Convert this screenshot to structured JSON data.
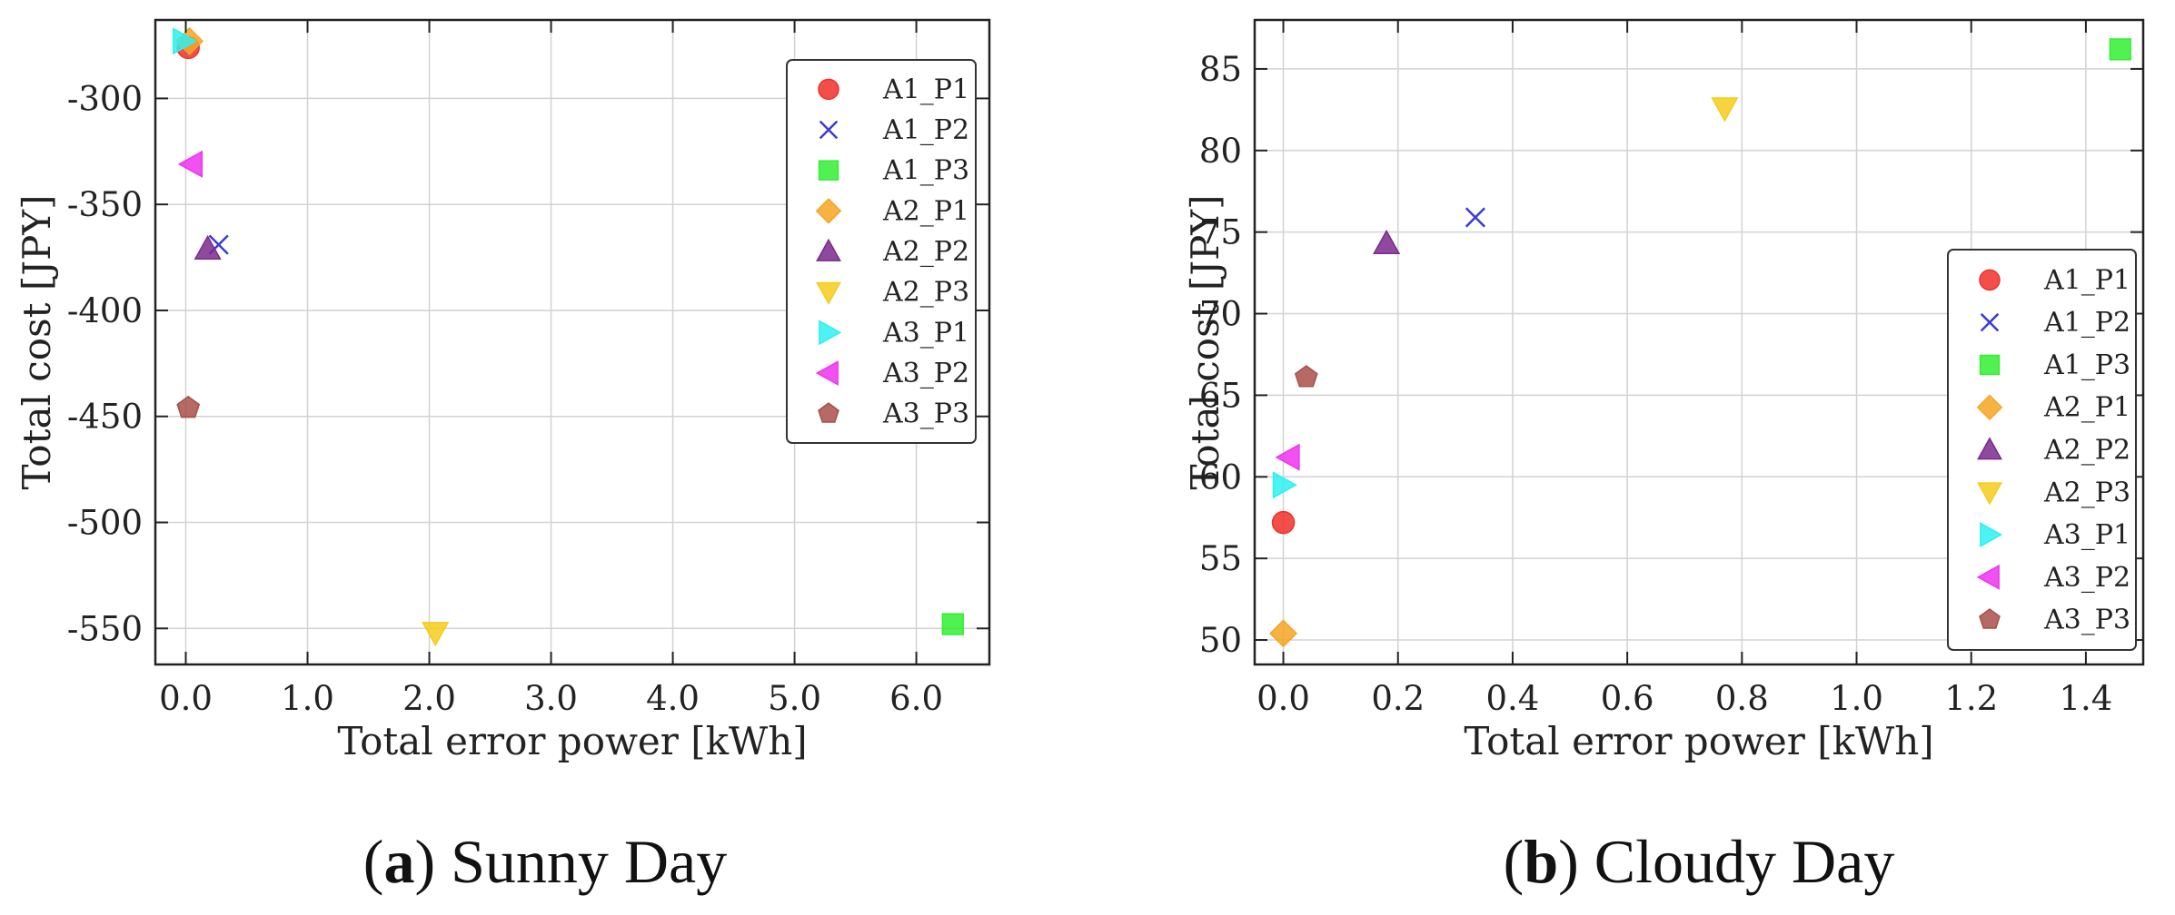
{
  "chart_data": [
    {
      "type": "scatter",
      "panel_label": "a",
      "caption": "Sunny Day",
      "xlabel": "Total error power [kWh]",
      "ylabel": "Total cost [JPY]",
      "xlim": [
        -0.25,
        6.6
      ],
      "ylim": [
        -567,
        -263
      ],
      "xticks": [
        0.0,
        1.0,
        2.0,
        3.0,
        4.0,
        5.0,
        6.0
      ],
      "xtick_labels": [
        "0.0",
        "1.0",
        "2.0",
        "3.0",
        "4.0",
        "5.0",
        "6.0"
      ],
      "yticks": [
        -300,
        -350,
        -400,
        -450,
        -500,
        -550
      ],
      "ytick_labels": [
        "-300",
        "-350",
        "-400",
        "-450",
        "-500",
        "-550"
      ],
      "grid": true,
      "legend_position": "top-right",
      "series": [
        {
          "name": "A1_P1",
          "marker": "circle",
          "color": "#f0302a",
          "x": [
            0.02
          ],
          "y": [
            -276
          ]
        },
        {
          "name": "A1_P2",
          "marker": "x",
          "color": "#3b3bd6",
          "x": [
            0.27
          ],
          "y": [
            -369
          ]
        },
        {
          "name": "A1_P3",
          "marker": "square",
          "color": "#33ee33",
          "x": [
            6.3
          ],
          "y": [
            -548
          ]
        },
        {
          "name": "A2_P1",
          "marker": "diamond",
          "color": "#f5a623",
          "x": [
            0.03
          ],
          "y": [
            -273
          ]
        },
        {
          "name": "A2_P2",
          "marker": "triangle-up",
          "color": "#7b2a8c",
          "x": [
            0.18
          ],
          "y": [
            -371
          ]
        },
        {
          "name": "A2_P3",
          "marker": "triangle-down",
          "color": "#f5cc1c",
          "x": [
            2.05
          ],
          "y": [
            -552
          ]
        },
        {
          "name": "A3_P1",
          "marker": "triangle-right",
          "color": "#2ef0f0",
          "x": [
            -0.02
          ],
          "y": [
            -273
          ]
        },
        {
          "name": "A3_P2",
          "marker": "triangle-left",
          "color": "#ee33ee",
          "x": [
            0.05
          ],
          "y": [
            -331
          ]
        },
        {
          "name": "A3_P3",
          "marker": "pentagon",
          "color": "#a8504a",
          "x": [
            0.02
          ],
          "y": [
            -446
          ]
        }
      ]
    },
    {
      "type": "scatter",
      "panel_label": "b",
      "caption": "Cloudy Day",
      "xlabel": "Total error power [kWh]",
      "ylabel": "Total cost [JPY]",
      "xlim": [
        -0.05,
        1.5
      ],
      "ylim": [
        48.5,
        88
      ],
      "xticks": [
        0.0,
        0.2,
        0.4,
        0.6,
        0.8,
        1.0,
        1.2,
        1.4
      ],
      "xtick_labels": [
        "0.0",
        "0.2",
        "0.4",
        "0.6",
        "0.8",
        "1.0",
        "1.2",
        "1.4"
      ],
      "yticks": [
        50,
        55,
        60,
        65,
        70,
        75,
        80,
        85
      ],
      "ytick_labels": [
        "50",
        "55",
        "60",
        "65",
        "70",
        "75",
        "80",
        "85"
      ],
      "grid": true,
      "legend_position": "bottom-right",
      "series": [
        {
          "name": "A1_P1",
          "marker": "circle",
          "color": "#f0302a",
          "x": [
            0.0
          ],
          "y": [
            57.2
          ]
        },
        {
          "name": "A1_P2",
          "marker": "x",
          "color": "#3b3bd6",
          "x": [
            0.335
          ],
          "y": [
            75.9
          ]
        },
        {
          "name": "A1_P3",
          "marker": "square",
          "color": "#33ee33",
          "x": [
            1.46
          ],
          "y": [
            86.2
          ]
        },
        {
          "name": "A2_P1",
          "marker": "diamond",
          "color": "#f5a623",
          "x": [
            0.0
          ],
          "y": [
            50.4
          ]
        },
        {
          "name": "A2_P2",
          "marker": "triangle-up",
          "color": "#7b2a8c",
          "x": [
            0.18
          ],
          "y": [
            74.3
          ]
        },
        {
          "name": "A2_P3",
          "marker": "triangle-down",
          "color": "#f5cc1c",
          "x": [
            0.77
          ],
          "y": [
            82.6
          ]
        },
        {
          "name": "A3_P1",
          "marker": "triangle-right",
          "color": "#2ef0f0",
          "x": [
            0.0
          ],
          "y": [
            59.5
          ]
        },
        {
          "name": "A3_P2",
          "marker": "triangle-left",
          "color": "#ee33ee",
          "x": [
            0.01
          ],
          "y": [
            61.2
          ]
        },
        {
          "name": "A3_P3",
          "marker": "pentagon",
          "color": "#a8504a",
          "x": [
            0.04
          ],
          "y": [
            66.1
          ]
        }
      ]
    }
  ]
}
